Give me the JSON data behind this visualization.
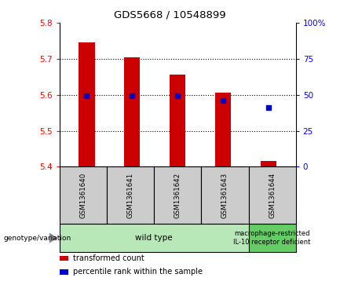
{
  "title": "GDS5668 / 10548899",
  "samples": [
    "GSM1361640",
    "GSM1361641",
    "GSM1361642",
    "GSM1361643",
    "GSM1361644"
  ],
  "bar_bottoms": [
    5.4,
    5.4,
    5.4,
    5.4,
    5.4
  ],
  "bar_tops": [
    5.745,
    5.705,
    5.655,
    5.605,
    5.415
  ],
  "percentile_values": [
    5.597,
    5.597,
    5.597,
    5.584,
    5.565
  ],
  "ylim": [
    5.4,
    5.8
  ],
  "yticks_left": [
    5.4,
    5.5,
    5.6,
    5.7,
    5.8
  ],
  "yticks_right": [
    0,
    25,
    50,
    75,
    100
  ],
  "bar_color": "#cc0000",
  "percentile_color": "#0000cc",
  "groups": [
    {
      "label": "wild type",
      "samples": [
        0,
        1,
        2,
        3
      ],
      "color": "#b8e8b8"
    },
    {
      "label": "macrophage-restricted\nIL-10 receptor deficient",
      "samples": [
        4
      ],
      "color": "#66cc66"
    }
  ],
  "label_box_color": "#cccccc",
  "genotype_label": "genotype/variation",
  "legend_items": [
    {
      "color": "#cc0000",
      "label": "transformed count"
    },
    {
      "color": "#0000cc",
      "label": "percentile rank within the sample"
    }
  ],
  "bar_width": 0.35
}
